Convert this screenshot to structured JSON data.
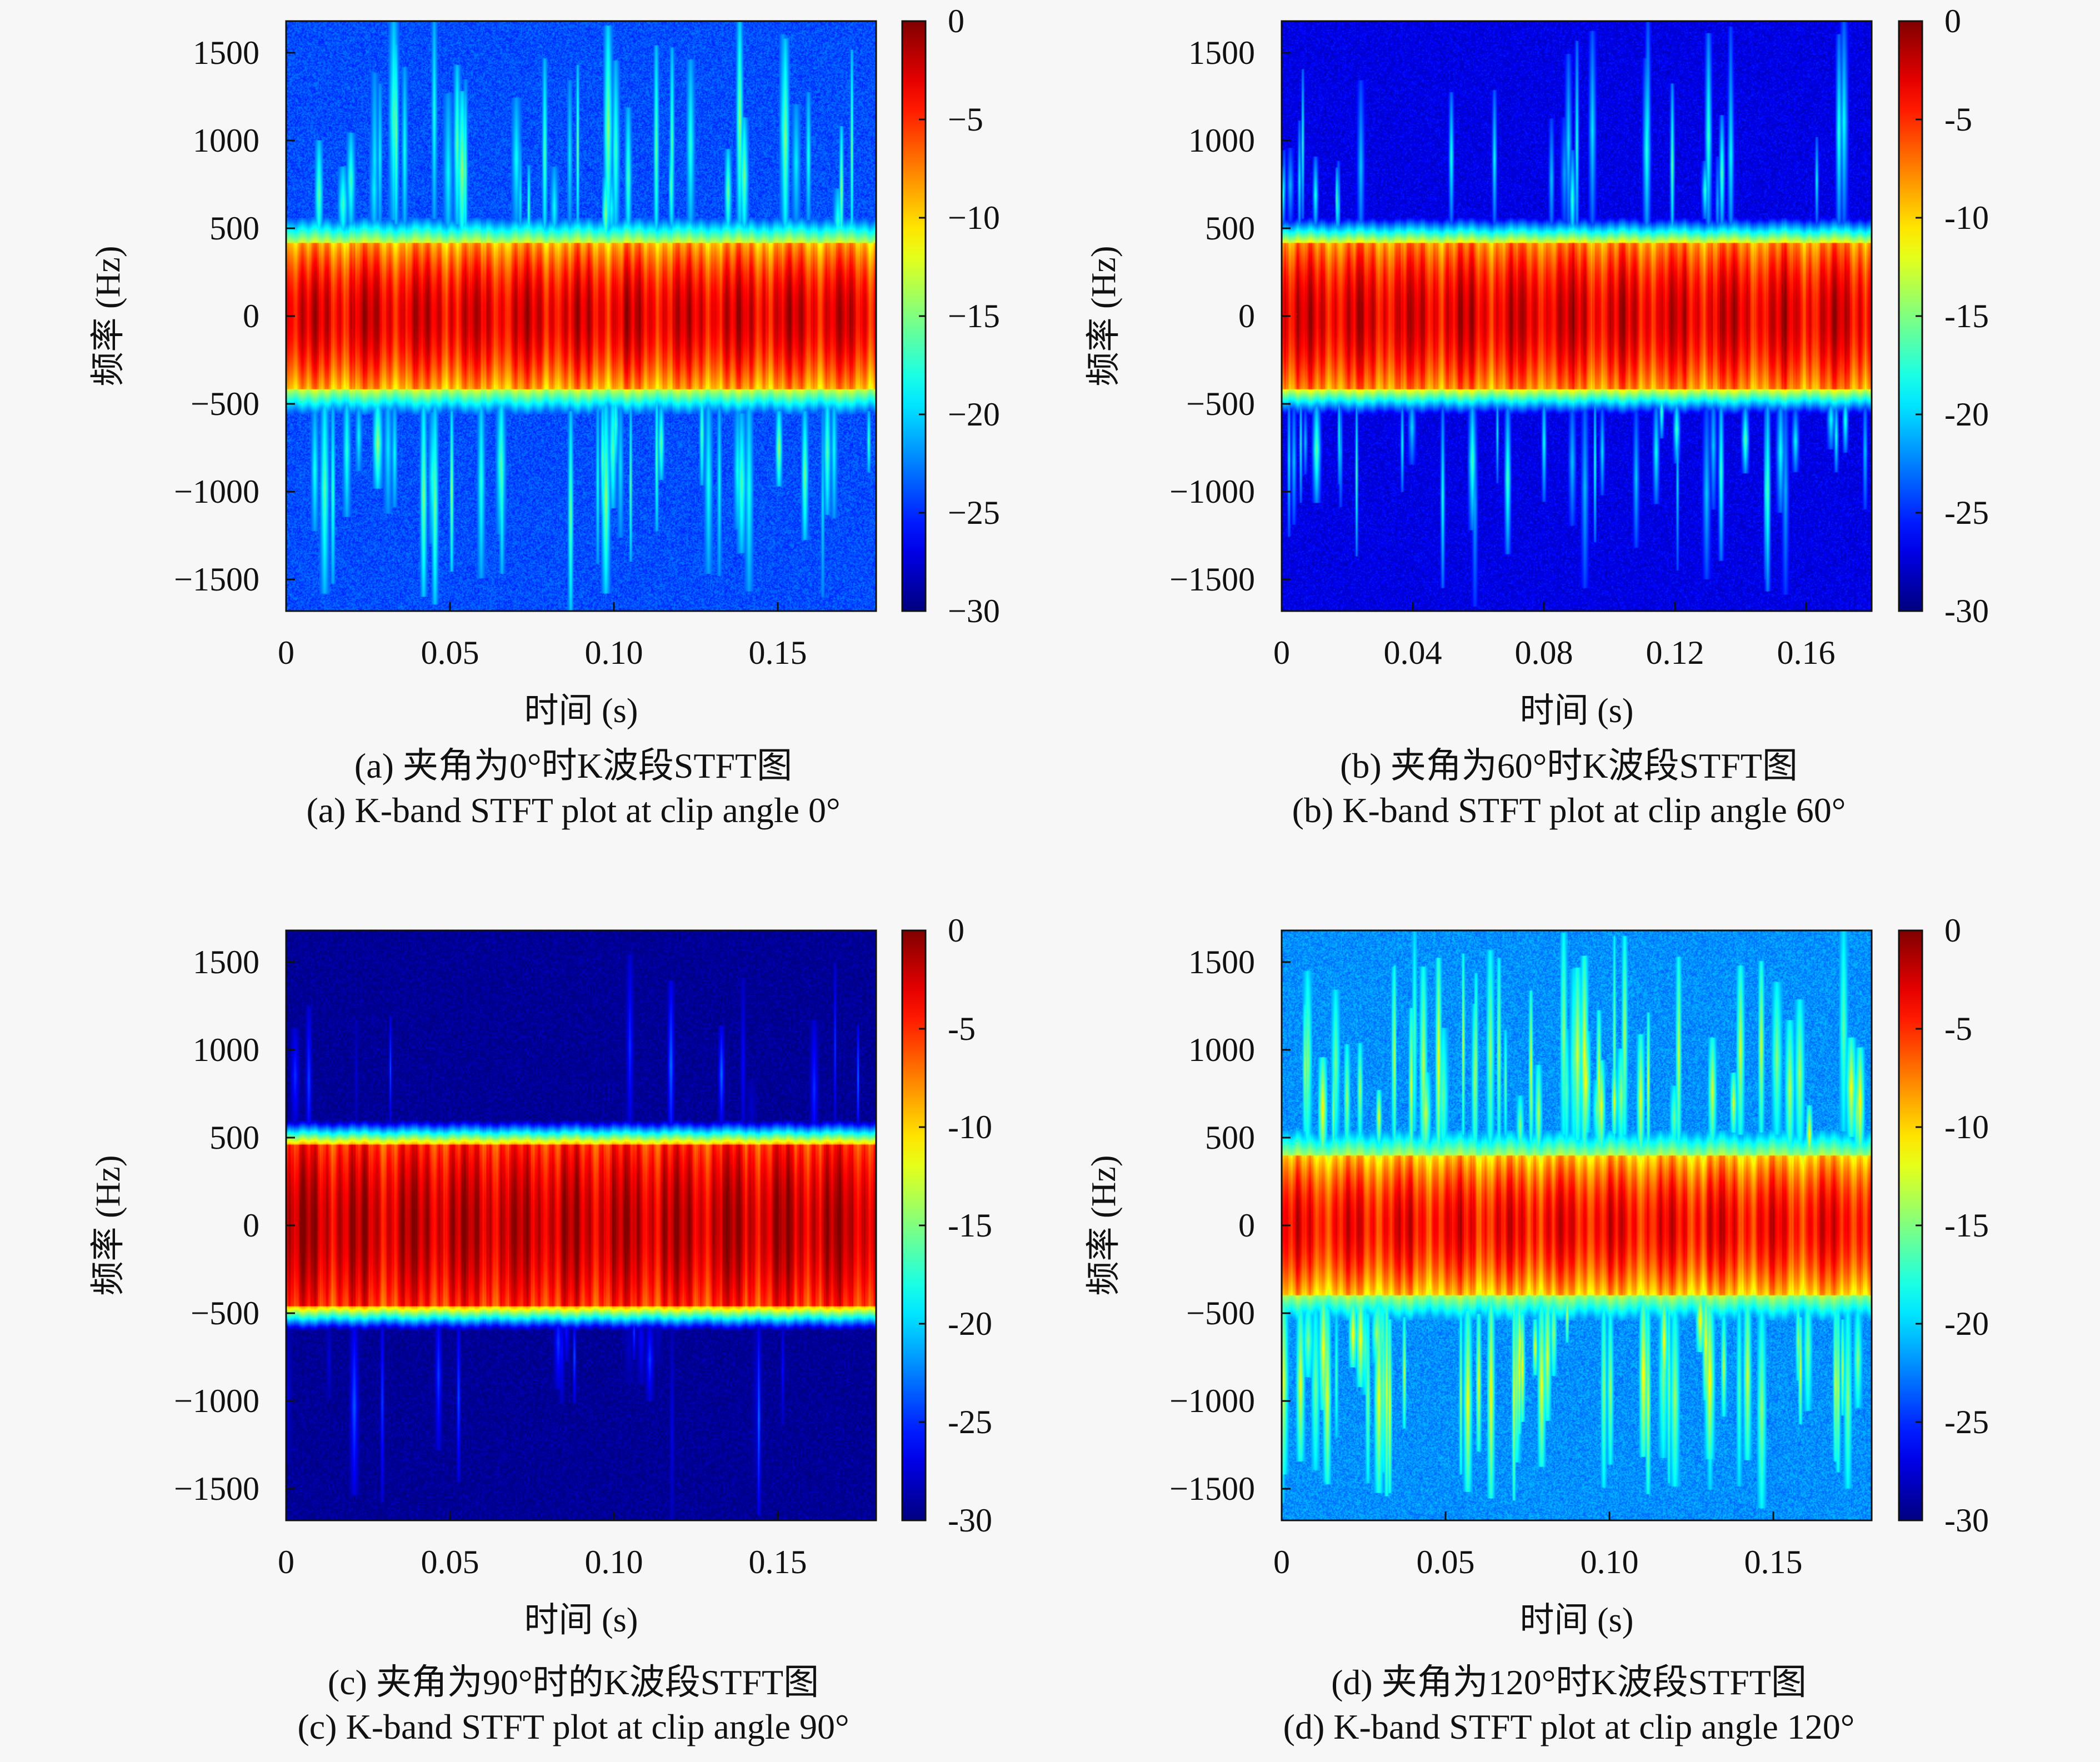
{
  "figure": {
    "colormap": "jet",
    "colors": {
      "jet_low": "#00007f",
      "jet_high": "#7f0000",
      "background": "#f7f7f7"
    }
  },
  "chart_data": [
    {
      "id": "a",
      "type": "heatmap",
      "xlabel": "时间 (s)",
      "ylabel": "频率 (Hz)",
      "xlim": [
        0,
        0.18
      ],
      "ylim": [
        -1680,
        1680
      ],
      "x_ticks": [
        0,
        0.05,
        0.1,
        0.15
      ],
      "x_tick_labels": [
        "0",
        "0.05",
        "0.10",
        "0.15"
      ],
      "y_ticks": [
        1500,
        1000,
        500,
        0,
        -500,
        -1000,
        -1500
      ],
      "y_tick_labels": [
        "1500",
        "1000",
        "500",
        "0",
        "−500",
        "−1000",
        "−1500"
      ],
      "colorbar": {
        "range": [
          -30,
          0
        ],
        "ticks": [
          0,
          -5,
          -10,
          -15,
          -20,
          -25,
          -30
        ],
        "tick_labels": [
          "0",
          "−5",
          "−10",
          "−15",
          "−20",
          "−25",
          "−30"
        ]
      },
      "band": {
        "center_hz": 0,
        "half_width_hz": 420,
        "core_db": -3,
        "mid_db": -9
      },
      "background_db": -24,
      "streak_level_db": -16,
      "streak_density": 0.9,
      "caption_cn": "(a) 夹角为0°时K波段STFT图",
      "caption_en": "(a) K-band STFT plot at clip angle 0°"
    },
    {
      "id": "b",
      "type": "heatmap",
      "xlabel": "时间 (s)",
      "ylabel": "频率 (Hz)",
      "xlim": [
        0,
        0.18
      ],
      "ylim": [
        -1680,
        1680
      ],
      "x_ticks": [
        0,
        0.04,
        0.08,
        0.12,
        0.16
      ],
      "x_tick_labels": [
        "0",
        "0.04",
        "0.08",
        "0.12",
        "0.16"
      ],
      "y_ticks": [
        1500,
        1000,
        500,
        0,
        -500,
        -1000,
        -1500
      ],
      "y_tick_labels": [
        "1500",
        "1000",
        "500",
        "0",
        "−500",
        "−1000",
        "−1500"
      ],
      "colorbar": {
        "range": [
          -30,
          0
        ],
        "ticks": [
          0,
          -5,
          -10,
          -15,
          -20,
          -25,
          -30
        ],
        "tick_labels": [
          "0",
          "-5",
          "-10",
          "-15",
          "-20",
          "-25",
          "-30"
        ]
      },
      "band": {
        "center_hz": 0,
        "half_width_hz": 420,
        "core_db": -3,
        "mid_db": -8
      },
      "background_db": -27,
      "streak_level_db": -18,
      "streak_density": 0.75,
      "caption_cn": "(b) 夹角为60°时K波段STFT图",
      "caption_en": "(b) K-band STFT plot at clip angle 60°"
    },
    {
      "id": "c",
      "type": "heatmap",
      "xlabel": "时间 (s)",
      "ylabel": "频率 (Hz)",
      "xlim": [
        0,
        0.18
      ],
      "ylim": [
        -1680,
        1680
      ],
      "x_ticks": [
        0,
        0.05,
        0.1,
        0.15
      ],
      "x_tick_labels": [
        "0",
        "0.05",
        "0.10",
        "0.15"
      ],
      "y_ticks": [
        1500,
        1000,
        500,
        0,
        -500,
        -1000,
        -1500
      ],
      "y_tick_labels": [
        "1500",
        "1000",
        "500",
        "0",
        "−500",
        "−1000",
        "−1500"
      ],
      "colorbar": {
        "range": [
          -30,
          0
        ],
        "ticks": [
          0,
          -5,
          -10,
          -15,
          -20,
          -25,
          -30
        ],
        "tick_labels": [
          "0",
          "-5",
          "-10",
          "-15",
          "-20",
          "-25",
          "-30"
        ]
      },
      "band": {
        "center_hz": 0,
        "half_width_hz": 460,
        "core_db": -2,
        "mid_db": -5
      },
      "background_db": -29.5,
      "streak_level_db": -25,
      "streak_density": 0.35,
      "caption_cn": "(c) 夹角为90°时的K波段STFT图",
      "caption_en": "(c) K-band STFT plot at clip angle 90°"
    },
    {
      "id": "d",
      "type": "heatmap",
      "xlabel": "时间 (s)",
      "ylabel": "频率 (Hz)",
      "xlim": [
        0,
        0.18
      ],
      "ylim": [
        -1680,
        1680
      ],
      "x_ticks": [
        0,
        0.05,
        0.1,
        0.15
      ],
      "x_tick_labels": [
        "0",
        "0.05",
        "0.10",
        "0.15"
      ],
      "y_ticks": [
        1500,
        1000,
        500,
        0,
        -500,
        -1000,
        -1500
      ],
      "y_tick_labels": [
        "1500",
        "1000",
        "500",
        "0",
        "−500",
        "−1000",
        "−1500"
      ],
      "colorbar": {
        "range": [
          -30,
          0
        ],
        "ticks": [
          0,
          -5,
          -10,
          -15,
          -20,
          -25,
          -30
        ],
        "tick_labels": [
          "0",
          "-5",
          "-10",
          "-15",
          "-20",
          "-25",
          "-30"
        ]
      },
      "band": {
        "center_hz": 0,
        "half_width_hz": 400,
        "core_db": -4,
        "mid_db": -10
      },
      "background_db": -22,
      "streak_level_db": -13,
      "streak_density": 1.3,
      "caption_cn": "(d) 夹角为120°时K波段STFT图",
      "caption_en": "(d) K-band STFT plot at clip angle 120°"
    }
  ]
}
